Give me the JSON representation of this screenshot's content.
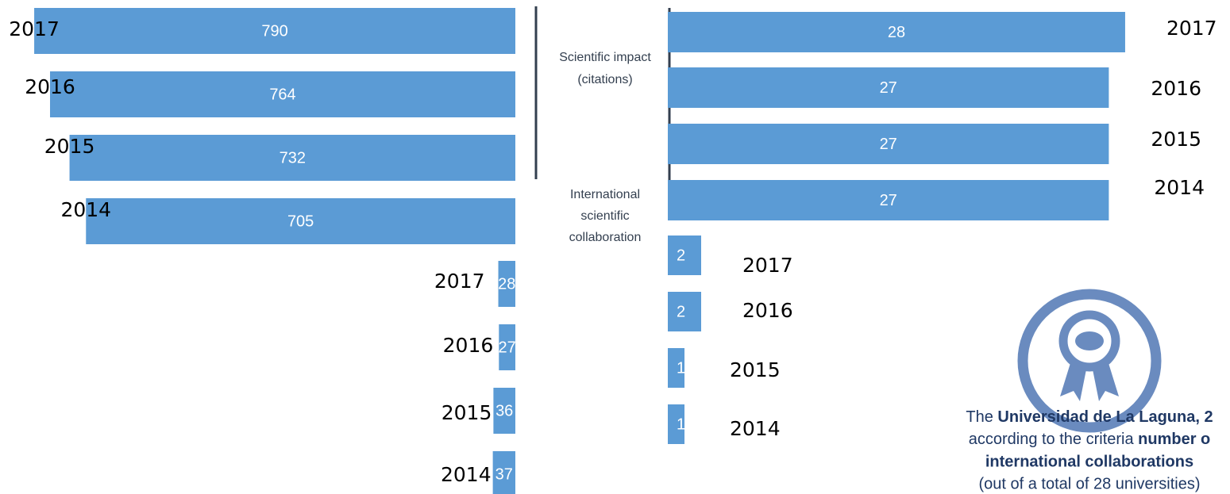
{
  "chart_data": [
    {
      "type": "bar",
      "categories": [
        "2017",
        "2016",
        "2015",
        "2014"
      ],
      "values": [
        790,
        764,
        732,
        705
      ],
      "color": "#5b9bd5"
    },
    {
      "type": "bar",
      "categories": [
        "2017",
        "2016",
        "2015",
        "2014"
      ],
      "values": [
        28,
        27,
        36,
        37
      ],
      "color": "#5b9bd5"
    },
    {
      "type": "bar",
      "categories": [
        "2017",
        "2016",
        "2015",
        "2014"
      ],
      "values": [
        28,
        27,
        27,
        27
      ],
      "color": "#5b9bd5"
    },
    {
      "type": "bar",
      "categories": [
        "2017",
        "2016",
        "2015",
        "2014"
      ],
      "values": [
        2,
        2,
        1,
        1
      ],
      "color": "#5b9bd5"
    }
  ],
  "labels": {
    "scientific_impact": [
      "Scientific impact",
      "(citations)"
    ],
    "international": [
      "International",
      "scientific",
      "collaboration"
    ]
  },
  "note": {
    "line1": [
      "The ",
      "Universidad de La Laguna, 2"
    ],
    "line2": [
      "according to the criteria ",
      "number o"
    ],
    "line3": "international collaborations",
    "line4": "(out of a total of 28 universities)"
  }
}
